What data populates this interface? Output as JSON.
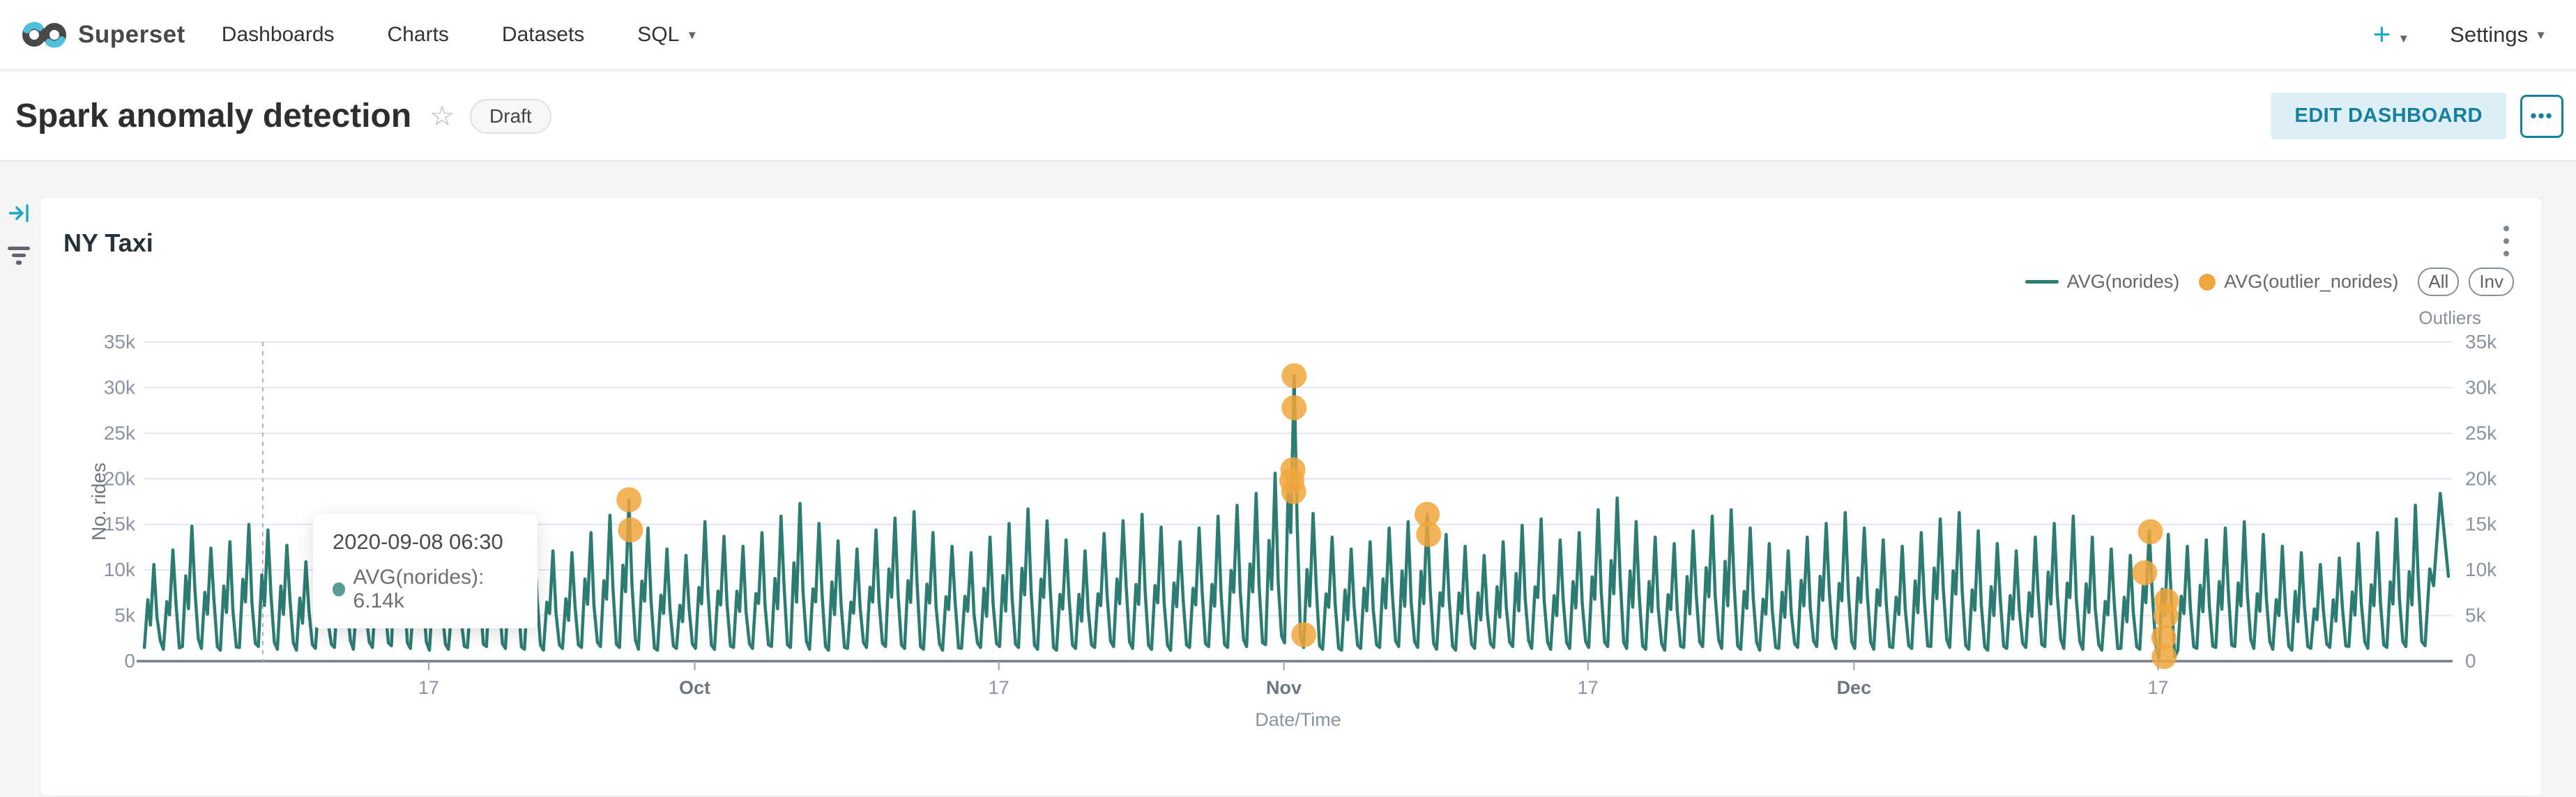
{
  "navbar": {
    "brand": "Superset",
    "items": [
      {
        "label": "Dashboards"
      },
      {
        "label": "Charts"
      },
      {
        "label": "Datasets"
      },
      {
        "label": "SQL",
        "caret": true
      }
    ],
    "plus_label": "+",
    "settings_label": "Settings"
  },
  "header": {
    "title": "Spark anomaly detection",
    "badge": "Draft",
    "edit_button": "EDIT DASHBOARD",
    "more_button": "•••"
  },
  "card": {
    "title": "NY Taxi",
    "legend": {
      "series_line": "AVG(norides)",
      "series_dots": "AVG(outlier_norides)",
      "pill_all": "All",
      "pill_inv": "Inv",
      "outliers": "Outliers"
    }
  },
  "tooltip": {
    "date": "2020-09-08 06:30",
    "text": "AVG(norides): 6.14k"
  },
  "colors": {
    "brand": "#20A7C9",
    "line": "#2d7c74",
    "outlier": "#f0a63c",
    "grid": "#e2e6ee",
    "axis": "#757e89",
    "tick_text": "#8b93a1"
  },
  "chart_data": {
    "type": "line",
    "title": "NY Taxi",
    "xlabel": "Date/Time",
    "ylabel": "No. rides",
    "ylim": [
      0,
      35
    ],
    "y_ticks": [
      {
        "v": 0,
        "label": "0"
      },
      {
        "v": 5,
        "label": "5k"
      },
      {
        "v": 10,
        "label": "10k"
      },
      {
        "v": 15,
        "label": "15k"
      },
      {
        "v": 20,
        "label": "20k"
      },
      {
        "v": 25,
        "label": "25k"
      },
      {
        "v": 30,
        "label": "30k"
      },
      {
        "v": 35,
        "label": "35k"
      }
    ],
    "x_range": [
      "2020-09-02",
      "2021-01-01"
    ],
    "x_ticks": [
      {
        "date": "2020-09-17",
        "label": "17",
        "month": false
      },
      {
        "date": "2020-10-01",
        "label": "Oct",
        "month": true
      },
      {
        "date": "2020-10-17",
        "label": "17",
        "month": false
      },
      {
        "date": "2020-11-01",
        "label": "Nov",
        "month": true
      },
      {
        "date": "2020-11-17",
        "label": "17",
        "month": false
      },
      {
        "date": "2020-12-01",
        "label": "Dec",
        "month": true
      },
      {
        "date": "2020-12-17",
        "label": "17",
        "month": false
      }
    ],
    "series": [
      {
        "name": "AVG(norides)",
        "unit": "thousand rides",
        "start_date": "2020-09-02",
        "daily_hi_lo": [
          [
            10.6,
            1.5
          ],
          [
            12.2,
            1.3
          ],
          [
            14.8,
            1.6
          ],
          [
            12.4,
            1.4
          ],
          [
            13.1,
            1.2
          ],
          [
            15.0,
            1.5
          ],
          [
            14.4,
            1.6
          ],
          [
            12.7,
            1.3
          ],
          [
            10.9,
            1.2
          ],
          [
            10.3,
            1.4
          ],
          [
            12.6,
            1.5
          ],
          [
            10.9,
            1.3
          ],
          [
            13.3,
            1.5
          ],
          [
            15.4,
            1.7
          ],
          [
            13.1,
            1.4
          ],
          [
            11.6,
            1.2
          ],
          [
            10.6,
            1.3
          ],
          [
            13.0,
            1.5
          ],
          [
            14.3,
            1.6
          ],
          [
            15.7,
            1.4
          ],
          [
            13.4,
            1.3
          ],
          [
            12.1,
            1.2
          ],
          [
            11.9,
            1.4
          ],
          [
            14.1,
            1.5
          ],
          [
            16.0,
            1.6
          ],
          [
            17.7,
            1.5
          ],
          [
            14.6,
            1.3
          ],
          [
            12.3,
            1.2
          ],
          [
            11.6,
            1.4
          ],
          [
            15.3,
            1.4
          ],
          [
            13.7,
            1.3
          ],
          [
            12.6,
            1.5
          ],
          [
            14.1,
            1.4
          ],
          [
            15.9,
            1.6
          ],
          [
            17.3,
            1.5
          ],
          [
            15.1,
            1.3
          ],
          [
            13.2,
            1.2
          ],
          [
            12.3,
            1.4
          ],
          [
            14.4,
            1.5
          ],
          [
            15.7,
            1.6
          ],
          [
            16.4,
            1.4
          ],
          [
            14.1,
            1.3
          ],
          [
            12.6,
            1.2
          ],
          [
            11.9,
            1.4
          ],
          [
            13.6,
            1.5
          ],
          [
            15.1,
            1.6
          ],
          [
            16.7,
            1.5
          ],
          [
            15.4,
            1.3
          ],
          [
            13.3,
            1.2
          ],
          [
            12.1,
            1.4
          ],
          [
            14.0,
            1.5
          ],
          [
            15.4,
            1.6
          ],
          [
            16.1,
            1.4
          ],
          [
            14.7,
            1.3
          ],
          [
            13.1,
            1.2
          ],
          [
            14.6,
            1.5
          ],
          [
            15.9,
            1.6
          ],
          [
            17.1,
            1.5
          ],
          [
            18.4,
            1.6
          ],
          [
            20.6,
            1.8
          ],
          [
            31.3,
            2.0
          ],
          [
            16.2,
            1.5
          ],
          [
            13.6,
            1.3
          ],
          [
            12.3,
            1.2
          ],
          [
            13.1,
            1.4
          ],
          [
            14.6,
            1.5
          ],
          [
            15.3,
            1.6
          ],
          [
            16.1,
            1.5
          ],
          [
            13.9,
            1.3
          ],
          [
            12.6,
            1.2
          ],
          [
            11.6,
            1.4
          ],
          [
            13.1,
            1.5
          ],
          [
            14.9,
            1.6
          ],
          [
            15.6,
            1.4
          ],
          [
            13.3,
            1.3
          ],
          [
            14.1,
            1.4
          ],
          [
            16.6,
            1.5
          ],
          [
            17.9,
            1.6
          ],
          [
            15.3,
            1.4
          ],
          [
            13.6,
            1.3
          ],
          [
            12.9,
            1.2
          ],
          [
            14.3,
            1.5
          ],
          [
            15.9,
            1.6
          ],
          [
            16.6,
            1.4
          ],
          [
            14.6,
            1.3
          ],
          [
            12.9,
            1.2
          ],
          [
            12.1,
            1.4
          ],
          [
            13.6,
            1.5
          ],
          [
            15.1,
            1.6
          ],
          [
            16.3,
            1.4
          ],
          [
            14.6,
            1.4
          ],
          [
            13.3,
            1.3
          ],
          [
            12.6,
            1.5
          ],
          [
            14.1,
            1.4
          ],
          [
            15.6,
            1.6
          ],
          [
            16.3,
            1.5
          ],
          [
            14.3,
            1.3
          ],
          [
            12.9,
            1.2
          ],
          [
            12.1,
            1.4
          ],
          [
            13.6,
            1.5
          ],
          [
            15.1,
            1.6
          ],
          [
            15.9,
            1.4
          ],
          [
            13.6,
            1.3
          ],
          [
            12.3,
            1.2
          ],
          [
            11.6,
            1.4
          ],
          [
            14.3,
            1.3
          ],
          [
            13.9,
            0.3
          ],
          [
            12.6,
            1.2
          ],
          [
            13.3,
            1.4
          ],
          [
            14.6,
            1.5
          ],
          [
            15.3,
            1.6
          ],
          [
            13.9,
            1.4
          ],
          [
            12.6,
            1.3
          ],
          [
            11.9,
            1.2
          ],
          [
            10.6,
            1.4
          ],
          [
            11.3,
            1.5
          ],
          [
            12.9,
            1.6
          ],
          [
            14.1,
            1.4
          ],
          [
            15.6,
            1.5
          ],
          [
            17.1,
            1.6
          ],
          [
            18.4,
            1.7
          ],
          [
            9.3,
            1.5
          ]
        ]
      },
      {
        "name": "AVG(outlier_norides)",
        "points": [
          {
            "date": "2020-09-27",
            "value": 17.7,
            "f": 0.54
          },
          {
            "date": "2020-09-27",
            "value": 14.4,
            "f": 0.62
          },
          {
            "date": "2020-11-01",
            "value": 31.3,
            "f": 0.54
          },
          {
            "date": "2020-11-01",
            "value": 27.8,
            "f": 0.54
          },
          {
            "date": "2020-11-01",
            "value": 21.0,
            "f": 0.48
          },
          {
            "date": "2020-11-01",
            "value": 19.8,
            "f": 0.42
          },
          {
            "date": "2020-11-01",
            "value": 18.6,
            "f": 0.52
          },
          {
            "date": "2020-11-02",
            "value": 2.9,
            "f": 0.05
          },
          {
            "date": "2020-11-08",
            "value": 16.1,
            "f": 0.54
          },
          {
            "date": "2020-11-08",
            "value": 13.9,
            "f": 0.62
          },
          {
            "date": "2020-12-16",
            "value": 14.2,
            "f": 0.6
          },
          {
            "date": "2020-12-16",
            "value": 9.7,
            "f": 0.3
          },
          {
            "date": "2020-12-17",
            "value": 6.6,
            "f": 0.45
          },
          {
            "date": "2020-12-17",
            "value": 5.0,
            "f": 0.42
          },
          {
            "date": "2020-12-17",
            "value": 2.6,
            "f": 0.3
          },
          {
            "date": "2020-12-17",
            "value": 0.5,
            "f": 0.32
          }
        ]
      }
    ],
    "hover_pointer": {
      "date": "2020-09-08",
      "frac": 0.27
    },
    "legend_position": "top-right",
    "grid": true
  }
}
